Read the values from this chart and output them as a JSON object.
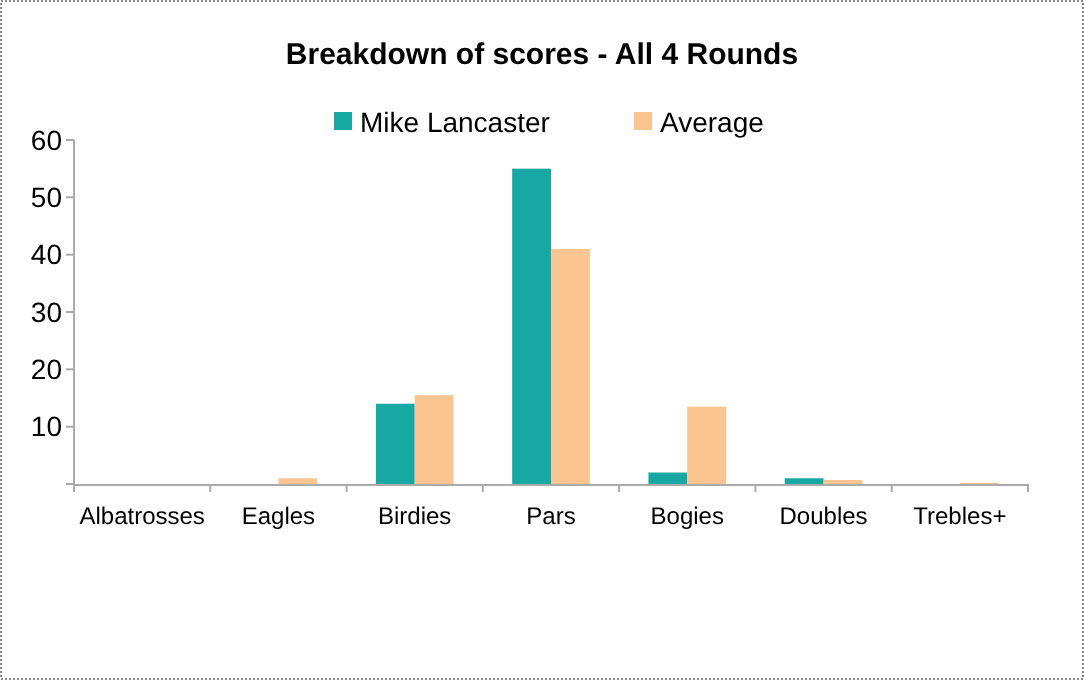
{
  "chart_data": {
    "type": "bar",
    "title": "Breakdown of scores - All 4 Rounds",
    "categories": [
      "Albatrosses",
      "Eagles",
      "Birdies",
      "Pars",
      "Bogies",
      "Doubles",
      "Trebles+"
    ],
    "series": [
      {
        "name": "Mike Lancaster",
        "color": "#17a8a4",
        "values": [
          0,
          0,
          14,
          55,
          2,
          1,
          0
        ]
      },
      {
        "name": "Average",
        "color": "#fbc592",
        "values": [
          0,
          1,
          15.5,
          41,
          13.5,
          0.7,
          0.2
        ]
      }
    ],
    "ylim": [
      0,
      60
    ],
    "yticks": [
      {
        "value": 0,
        "label": null
      },
      10,
      20,
      30,
      40,
      50,
      60
    ],
    "grid": false,
    "legend": "top"
  }
}
